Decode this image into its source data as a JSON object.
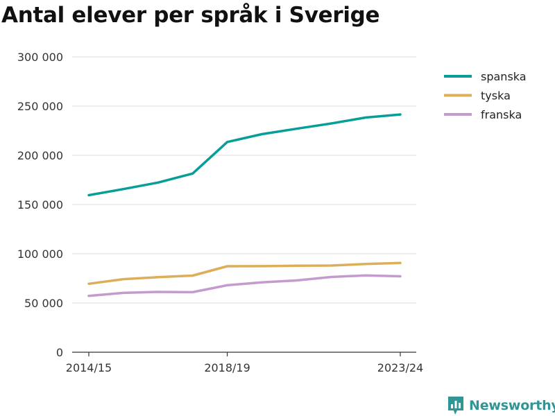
{
  "title": "Antal elever per språk i Sverige",
  "brand": {
    "name": "Newsworthy",
    "icon": "newsworthy-logo-icon",
    "color": "#2f9595"
  },
  "chart_data": {
    "type": "line",
    "title": "Antal elever per språk i Sverige",
    "xlabel": "",
    "ylabel": "",
    "x": [
      "2014/15",
      "2015/16",
      "2016/17",
      "2017/18",
      "2018/19",
      "2019/20",
      "2020/21",
      "2021/22",
      "2022/23",
      "2023/24"
    ],
    "x_tick_labels": [
      "2014/15",
      "2018/19",
      "2023/24"
    ],
    "y_ticks": [
      0,
      50000,
      100000,
      150000,
      200000,
      250000,
      300000
    ],
    "y_tick_labels": [
      "0",
      "50 000",
      "100 000",
      "150 000",
      "200 000",
      "250 000",
      "300 000"
    ],
    "ylim": [
      0,
      300000
    ],
    "grid": true,
    "legend_position": "right",
    "series": [
      {
        "name": "spanska",
        "color": "#079e9a",
        "values": [
          159500,
          165700,
          172300,
          181500,
          213500,
          221500,
          227000,
          232300,
          238400,
          241500
        ]
      },
      {
        "name": "tyska",
        "color": "#dcae5a",
        "values": [
          69500,
          74200,
          76300,
          77800,
          87300,
          87400,
          87800,
          88000,
          89600,
          90600
        ]
      },
      {
        "name": "franska",
        "color": "#c49bce",
        "values": [
          57200,
          60300,
          61300,
          61000,
          68000,
          71000,
          72900,
          76400,
          78000,
          77100
        ]
      }
    ]
  }
}
